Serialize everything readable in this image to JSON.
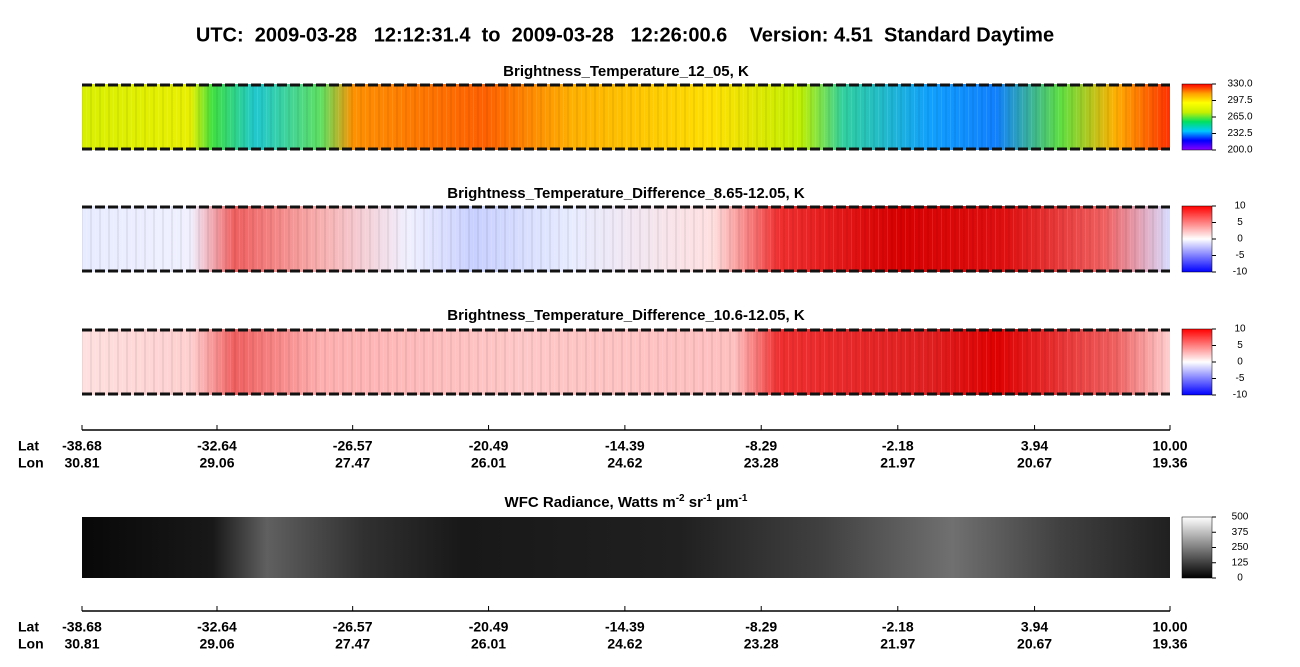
{
  "title": "UTC:  2009-03-28   12:12:31.4  to  2009-03-28   12:26:00.6    Version: 4.51  Standard Daytime",
  "panels": [
    {
      "title": "Brightness_Temperature_12_05, K",
      "colormap": [
        "#8a00ff",
        "#0000ff",
        "#00c8ff",
        "#00e060",
        "#c8f000",
        "#ffff00",
        "#ffa000",
        "#ff0000"
      ],
      "ylim": [
        200,
        330
      ],
      "ticks": [
        {
          "value": 330,
          "label": "330.0"
        },
        {
          "value": 297.5,
          "label": "297.5"
        },
        {
          "value": 265,
          "label": "265.0"
        },
        {
          "value": 232.5,
          "label": "232.5"
        },
        {
          "value": 200,
          "label": "200.0"
        }
      ]
    },
    {
      "title": "Brightness_Temperature_Difference_8.65-12.05, K",
      "colormap": [
        "#0000ff",
        "#ffffff",
        "#ff0000"
      ],
      "ylim": [
        -10,
        10
      ],
      "ticks": [
        10,
        5,
        0,
        -5,
        -10
      ]
    },
    {
      "title": "Brightness_Temperature_Difference_10.6-12.05, K",
      "colormap": [
        "#0000ff",
        "#ffffff",
        "#ff0000"
      ],
      "ylim": [
        -10,
        10
      ],
      "ticks": [
        10,
        5,
        0,
        -5,
        -10
      ]
    },
    {
      "title_parts": [
        "WFC Radiance, Watts m",
        "-2",
        " sr",
        "-1",
        " μm",
        "-1"
      ],
      "colormap": [
        "#000000",
        "#ffffff"
      ],
      "ylim": [
        0,
        500
      ],
      "ticks": [
        500,
        375,
        250,
        125,
        0
      ]
    }
  ],
  "axis": {
    "lat_label": "Lat",
    "lon_label": "Lon",
    "xlim": [
      -38.68,
      10.0
    ],
    "lat_ticks": [
      -38.68,
      -32.64,
      -26.57,
      -20.49,
      -14.39,
      -8.29,
      -2.18,
      3.94,
      {
        "value": 10.0,
        "label": "10.00"
      }
    ],
    "lon_ticks": [
      30.81,
      29.06,
      27.47,
      26.01,
      24.62,
      23.28,
      21.97,
      20.67,
      19.36
    ]
  }
}
